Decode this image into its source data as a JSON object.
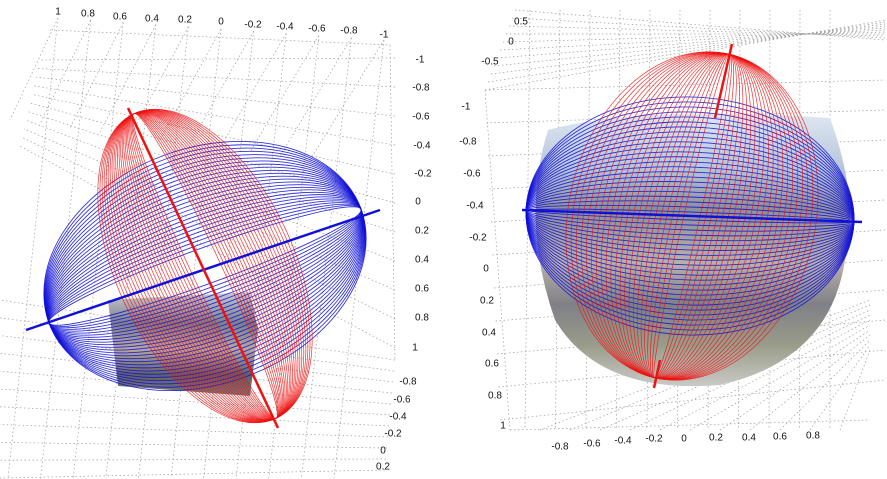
{
  "panels": [
    {
      "axes": [
        {
          "ticks": [
            "1",
            "0.8",
            "0.6",
            "0.4",
            "0.2",
            "0",
            "-0.2",
            "-0.4",
            "-0.6",
            "-0.8",
            "-1"
          ]
        },
        {
          "ticks": [
            "-1",
            "-0.8",
            "-0.6",
            "-0.4",
            "-0.2",
            "0",
            "0.2",
            "0.4",
            "0.6",
            "0.8",
            "1"
          ]
        },
        {
          "ticks": [
            "-0.8",
            "-0.6",
            "-0.4",
            "-0.2",
            "0",
            "0.2"
          ]
        }
      ]
    },
    {
      "axes": [
        {
          "ticks": [
            "0.5",
            "0",
            "-0.5"
          ]
        },
        {
          "ticks": [
            "-1",
            "-0.8",
            "-0.6",
            "-0.4",
            "-0.2",
            "0",
            "0.2",
            "0.4",
            "0.6",
            "0.8",
            "1"
          ]
        },
        {
          "ticks": [
            "-0.8",
            "-0.6",
            "-0.4",
            "-0.2",
            "0",
            "0.2",
            "0.4",
            "0.6",
            "0.8"
          ]
        }
      ]
    }
  ]
}
